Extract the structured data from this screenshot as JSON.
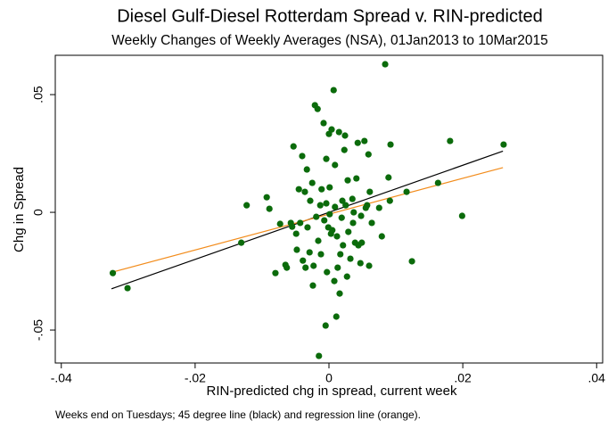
{
  "chart_data": {
    "type": "scatter",
    "title": "Diesel Gulf-Diesel Rotterdam Spread v. RIN-predicted",
    "subtitle": "Weekly Changes of Weekly Averages (NSA), 01Jan2013 to 10Mar2015",
    "xlabel": "RIN-predicted chg in spread, current week",
    "ylabel": "Chg in Spread",
    "note": "Weeks end on Tuesdays; 45 degree line (black) and regression line (orange).",
    "xlim": [
      -0.0409,
      0.0409
    ],
    "ylim": [
      -0.064,
      0.0667
    ],
    "xticks": [
      {
        "value": -0.04,
        "label": "-.04"
      },
      {
        "value": -0.02,
        "label": "-.02"
      },
      0,
      {
        "value": 0.02,
        "label": ".02"
      },
      {
        "value": 0.04,
        "label": ".04"
      }
    ],
    "yticks": [
      {
        "value": -0.05,
        "label": "-.05"
      },
      0,
      {
        "value": 0.05,
        "label": ".05"
      }
    ],
    "series": [
      {
        "color": "#0b6b0b",
        "x": [
          -0.0323,
          -0.0301,
          -0.0123,
          -0.0131,
          -0.0093,
          -0.0089,
          -0.0073,
          -0.008,
          -0.0065,
          -0.0063,
          -0.0057,
          -0.0055,
          -0.0053,
          -0.0049,
          -0.0048,
          -0.0045,
          -0.0043,
          -0.004,
          -0.0039,
          -0.0036,
          -0.0035,
          -0.0033,
          -0.0032,
          -0.0029,
          -0.0028,
          -0.0025,
          -0.0024,
          -0.0023,
          -0.0021,
          -0.0017,
          -0.0019,
          -0.0016,
          -0.0015,
          -0.0013,
          -0.0012,
          -0.0011,
          -0.0008,
          -0.0007,
          -0.0005,
          -0.0004,
          -0.0004,
          -0.0003,
          -0.0001,
          0,
          0.0001,
          0.0001,
          0.0003,
          0.0004,
          0.0005,
          0.0007,
          0.0008,
          0.0009,
          0.0009,
          0.0011,
          0.0012,
          0.0013,
          0.0015,
          0.0016,
          0.0017,
          0.0019,
          0.002,
          0.0021,
          0.0023,
          0.0024,
          0.0025,
          0.0027,
          0.0028,
          0.0029,
          0.0032,
          0.0035,
          0.0036,
          0.0037,
          0.0039,
          0.0041,
          0.0043,
          0.0044,
          0.0047,
          0.0048,
          0.0049,
          0.0053,
          0.0055,
          0.0057,
          0.0059,
          0.006,
          0.0061,
          0.0064,
          0.0075,
          0.0079,
          0.0084,
          0.0089,
          0.0091,
          0.0092,
          0.0116,
          0.0124,
          0.0163,
          0.0181,
          0.0199,
          0.0261
        ],
        "values": [
          -0.0258,
          -0.0322,
          0.003,
          -0.0129,
          0.0064,
          0.0015,
          -0.0049,
          -0.0258,
          -0.0223,
          -0.0235,
          -0.0045,
          -0.0061,
          0.028,
          -0.0091,
          -0.0159,
          0.0098,
          -0.0045,
          0.0239,
          -0.0205,
          0.0087,
          -0.0235,
          0.0182,
          -0.0064,
          -0.017,
          0.0049,
          0.0125,
          -0.0311,
          -0.0227,
          0.0455,
          0.0439,
          -0.0019,
          -0.0121,
          -0.061,
          0.003,
          -0.0178,
          0.0098,
          0.0379,
          -0.0034,
          -0.0481,
          0.0227,
          0.0038,
          -0.0254,
          -0.0064,
          0.0333,
          -0.0008,
          0.0106,
          -0.0091,
          0.0352,
          -0.0076,
          0.0519,
          -0.0292,
          0.0201,
          0.0023,
          -0.0443,
          -0.0102,
          -0.0235,
          0.0341,
          -0.0345,
          -0.0178,
          -0.0023,
          0.0049,
          -0.014,
          0.0265,
          0.0326,
          0.003,
          -0.0273,
          0.0136,
          -0.0083,
          -0.0197,
          0.0057,
          -0.0045,
          0,
          -0.0129,
          0.0144,
          0.0295,
          -0.014,
          -0.0216,
          -0.0015,
          -0.0129,
          0.0303,
          0.0019,
          0.003,
          0.0246,
          -0.0227,
          0.0087,
          -0.0045,
          0.0019,
          -0.0102,
          0.0629,
          0.0148,
          0.0049,
          0.0288,
          0.0087,
          -0.0208,
          0.0125,
          0.0303,
          -0.0015,
          0.0288
        ]
      }
    ],
    "lines": [
      {
        "color": "#000000",
        "x": [
          -0.0325,
          0.026
        ],
        "values": [
          -0.0325,
          0.026
        ]
      },
      {
        "color": "#f28c1c",
        "x": [
          -0.0325,
          0.026
        ],
        "values": [
          -0.0255,
          0.019
        ]
      }
    ]
  }
}
